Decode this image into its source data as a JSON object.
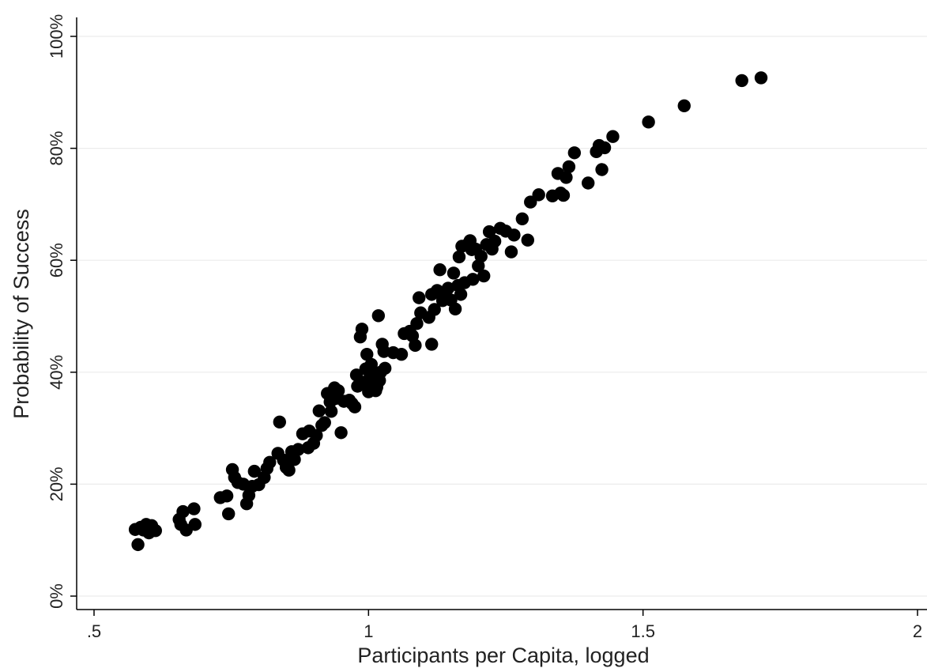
{
  "chart_data": {
    "type": "scatter",
    "title": "",
    "xlabel": "Participants per Capita, logged",
    "ylabel": "Probability of Success",
    "xlim": [
      0.5,
      2.0
    ],
    "ylim": [
      0,
      100
    ],
    "xticks": [
      0.5,
      1.0,
      1.5,
      2.0
    ],
    "xtick_labels": [
      ".5",
      "1",
      "1.5",
      "2"
    ],
    "yticks": [
      0,
      20,
      40,
      60,
      80,
      100
    ],
    "ytick_labels": [
      "0%",
      "20%",
      "40%",
      "60%",
      "80%",
      "100%"
    ],
    "grid": true,
    "legend": "none",
    "colors": {
      "marker": "#000000",
      "grid": "#ececec",
      "axis": "#000000"
    },
    "series": [
      {
        "points": [
          [
            0.575,
            11.9
          ],
          [
            0.58,
            9.2
          ],
          [
            0.585,
            12.3
          ],
          [
            0.59,
            11.8
          ],
          [
            0.595,
            12.8
          ],
          [
            0.6,
            11.3
          ],
          [
            0.605,
            12.6
          ],
          [
            0.612,
            11.7
          ],
          [
            0.655,
            13.7
          ],
          [
            0.658,
            12.8
          ],
          [
            0.662,
            15.1
          ],
          [
            0.668,
            11.8
          ],
          [
            0.682,
            15.6
          ],
          [
            0.684,
            12.8
          ],
          [
            0.73,
            17.6
          ],
          [
            0.742,
            17.9
          ],
          [
            0.745,
            14.7
          ],
          [
            0.752,
            22.6
          ],
          [
            0.756,
            21.2
          ],
          [
            0.762,
            20.3
          ],
          [
            0.772,
            20.0
          ],
          [
            0.778,
            16.5
          ],
          [
            0.782,
            18.0
          ],
          [
            0.788,
            19.6
          ],
          [
            0.792,
            22.3
          ],
          [
            0.8,
            19.9
          ],
          [
            0.81,
            21.2
          ],
          [
            0.815,
            22.8
          ],
          [
            0.82,
            23.9
          ],
          [
            0.835,
            25.5
          ],
          [
            0.838,
            31.1
          ],
          [
            0.845,
            24.3
          ],
          [
            0.85,
            23.0
          ],
          [
            0.855,
            22.5
          ],
          [
            0.86,
            25.8
          ],
          [
            0.865,
            24.4
          ],
          [
            0.872,
            26.2
          ],
          [
            0.88,
            29.0
          ],
          [
            0.89,
            26.5
          ],
          [
            0.892,
            29.5
          ],
          [
            0.9,
            27.3
          ],
          [
            0.905,
            28.7
          ],
          [
            0.91,
            33.1
          ],
          [
            0.915,
            30.5
          ],
          [
            0.92,
            31.0
          ],
          [
            0.925,
            36.2
          ],
          [
            0.93,
            34.7
          ],
          [
            0.932,
            33.0
          ],
          [
            0.938,
            37.2
          ],
          [
            0.94,
            35.3
          ],
          [
            0.945,
            36.7
          ],
          [
            0.95,
            29.2
          ],
          [
            0.955,
            34.8
          ],
          [
            0.965,
            35.0
          ],
          [
            0.97,
            34.4
          ],
          [
            0.975,
            33.8
          ],
          [
            0.978,
            39.5
          ],
          [
            0.98,
            37.5
          ],
          [
            0.985,
            46.3
          ],
          [
            0.988,
            47.7
          ],
          [
            0.99,
            38.2
          ],
          [
            0.995,
            40.6
          ],
          [
            0.997,
            43.2
          ],
          [
            1.0,
            36.5
          ],
          [
            1.003,
            39.2
          ],
          [
            1.005,
            41.4
          ],
          [
            1.008,
            37.8
          ],
          [
            1.01,
            39.8
          ],
          [
            1.013,
            36.7
          ],
          [
            1.015,
            37.3
          ],
          [
            1.018,
            50.1
          ],
          [
            1.02,
            38.5
          ],
          [
            1.022,
            40.0
          ],
          [
            1.025,
            45.0
          ],
          [
            1.028,
            43.7
          ],
          [
            1.03,
            40.7
          ],
          [
            1.045,
            43.5
          ],
          [
            1.06,
            43.2
          ],
          [
            1.065,
            46.9
          ],
          [
            1.075,
            47.3
          ],
          [
            1.08,
            46.5
          ],
          [
            1.085,
            44.8
          ],
          [
            1.088,
            48.7
          ],
          [
            1.092,
            53.3
          ],
          [
            1.095,
            50.6
          ],
          [
            1.11,
            49.8
          ],
          [
            1.115,
            45.0
          ],
          [
            1.115,
            53.9
          ],
          [
            1.12,
            51.2
          ],
          [
            1.125,
            54.6
          ],
          [
            1.13,
            58.3
          ],
          [
            1.135,
            52.8
          ],
          [
            1.14,
            54.3
          ],
          [
            1.145,
            55.0
          ],
          [
            1.15,
            52.9
          ],
          [
            1.155,
            57.7
          ],
          [
            1.158,
            51.3
          ],
          [
            1.163,
            55.5
          ],
          [
            1.165,
            60.6
          ],
          [
            1.168,
            53.9
          ],
          [
            1.17,
            62.5
          ],
          [
            1.175,
            56.0
          ],
          [
            1.18,
            62.8
          ],
          [
            1.185,
            63.5
          ],
          [
            1.188,
            61.9
          ],
          [
            1.19,
            56.6
          ],
          [
            1.195,
            62.0
          ],
          [
            1.2,
            59.0
          ],
          [
            1.205,
            60.7
          ],
          [
            1.21,
            57.2
          ],
          [
            1.215,
            62.8
          ],
          [
            1.22,
            65.1
          ],
          [
            1.225,
            62.0
          ],
          [
            1.23,
            63.4
          ],
          [
            1.24,
            65.7
          ],
          [
            1.25,
            65.2
          ],
          [
            1.26,
            61.5
          ],
          [
            1.265,
            64.5
          ],
          [
            1.28,
            67.4
          ],
          [
            1.29,
            63.6
          ],
          [
            1.295,
            70.4
          ],
          [
            1.31,
            71.7
          ],
          [
            1.335,
            71.5
          ],
          [
            1.345,
            75.5
          ],
          [
            1.35,
            72.0
          ],
          [
            1.355,
            71.6
          ],
          [
            1.36,
            74.8
          ],
          [
            1.365,
            76.7
          ],
          [
            1.375,
            79.2
          ],
          [
            1.4,
            73.8
          ],
          [
            1.415,
            79.4
          ],
          [
            1.42,
            80.5
          ],
          [
            1.425,
            76.2
          ],
          [
            1.43,
            80.1
          ],
          [
            1.445,
            82.1
          ],
          [
            1.51,
            84.7
          ],
          [
            1.575,
            87.6
          ],
          [
            1.68,
            92.1
          ],
          [
            1.715,
            92.6
          ]
        ]
      }
    ]
  }
}
